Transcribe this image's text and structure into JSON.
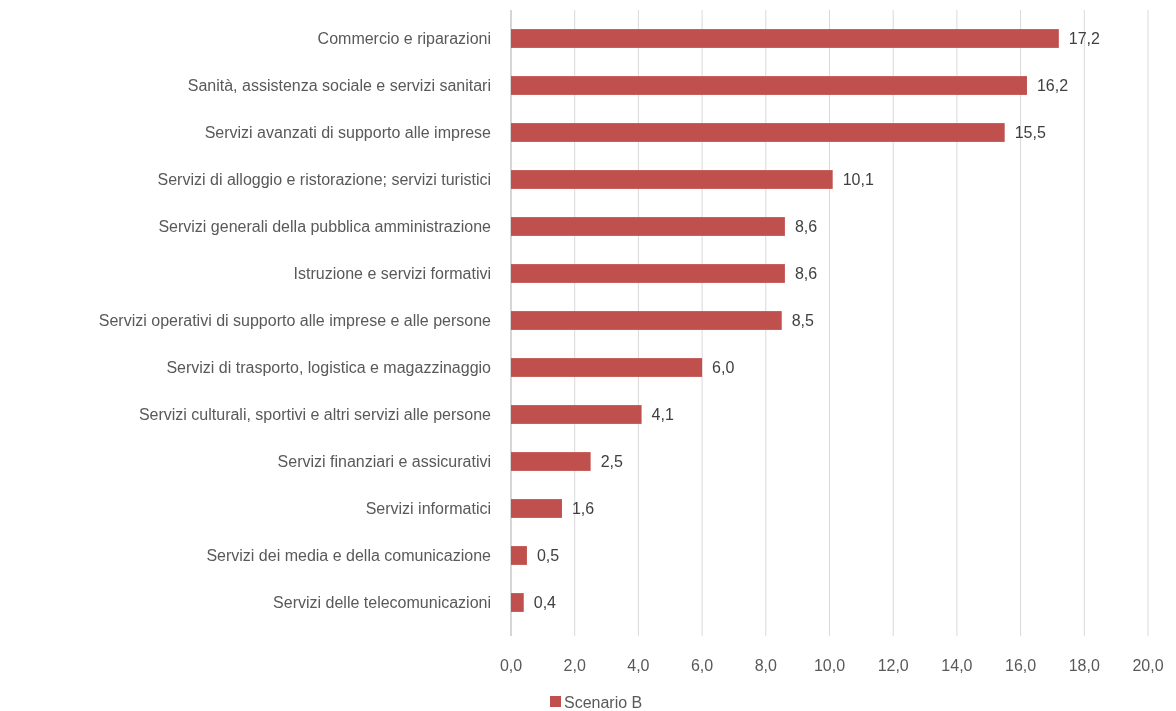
{
  "chart_data": {
    "type": "bar",
    "orientation": "horizontal",
    "categories": [
      "Commercio e riparazioni",
      "Sanità, assistenza sociale e servizi sanitari",
      "Servizi avanzati di supporto alle imprese",
      "Servizi di alloggio e ristorazione; servizi turistici",
      "Servizi generali della pubblica amministrazione",
      "Istruzione e servizi formativi",
      "Servizi operativi di supporto alle imprese e alle persone",
      "Servizi di trasporto, logistica e magazzinaggio",
      "Servizi culturali, sportivi e altri servizi alle persone",
      "Servizi finanziari e assicurativi",
      "Servizi informatici",
      "Servizi dei media e della comunicazione",
      "Servizi delle telecomunicazioni"
    ],
    "series": [
      {
        "name": "Scenario B",
        "color": "#c0504d",
        "values": [
          17.2,
          16.2,
          15.5,
          10.1,
          8.6,
          8.6,
          8.5,
          6.0,
          4.1,
          2.5,
          1.6,
          0.5,
          0.4
        ],
        "value_labels": [
          "17,2",
          "16,2",
          "15,5",
          "10,1",
          "8,6",
          "8,6",
          "8,5",
          "6,0",
          "4,1",
          "2,5",
          "1,6",
          "0,5",
          "0,4"
        ]
      }
    ],
    "xlim": [
      0,
      20
    ],
    "xticks": [
      {
        "value": 0,
        "label": "0,0"
      },
      {
        "value": 2,
        "label": "2,0"
      },
      {
        "value": 4,
        "label": "4,0"
      },
      {
        "value": 6,
        "label": "6,0"
      },
      {
        "value": 8,
        "label": "8,0"
      },
      {
        "value": 10,
        "label": "10,0"
      },
      {
        "value": 12,
        "label": "12,0"
      },
      {
        "value": 14,
        "label": "14,0"
      },
      {
        "value": 16,
        "label": "16,0"
      },
      {
        "value": 18,
        "label": "18,0"
      },
      {
        "value": 20,
        "label": "20,0"
      }
    ],
    "grid": "x",
    "legend": "bottom"
  }
}
